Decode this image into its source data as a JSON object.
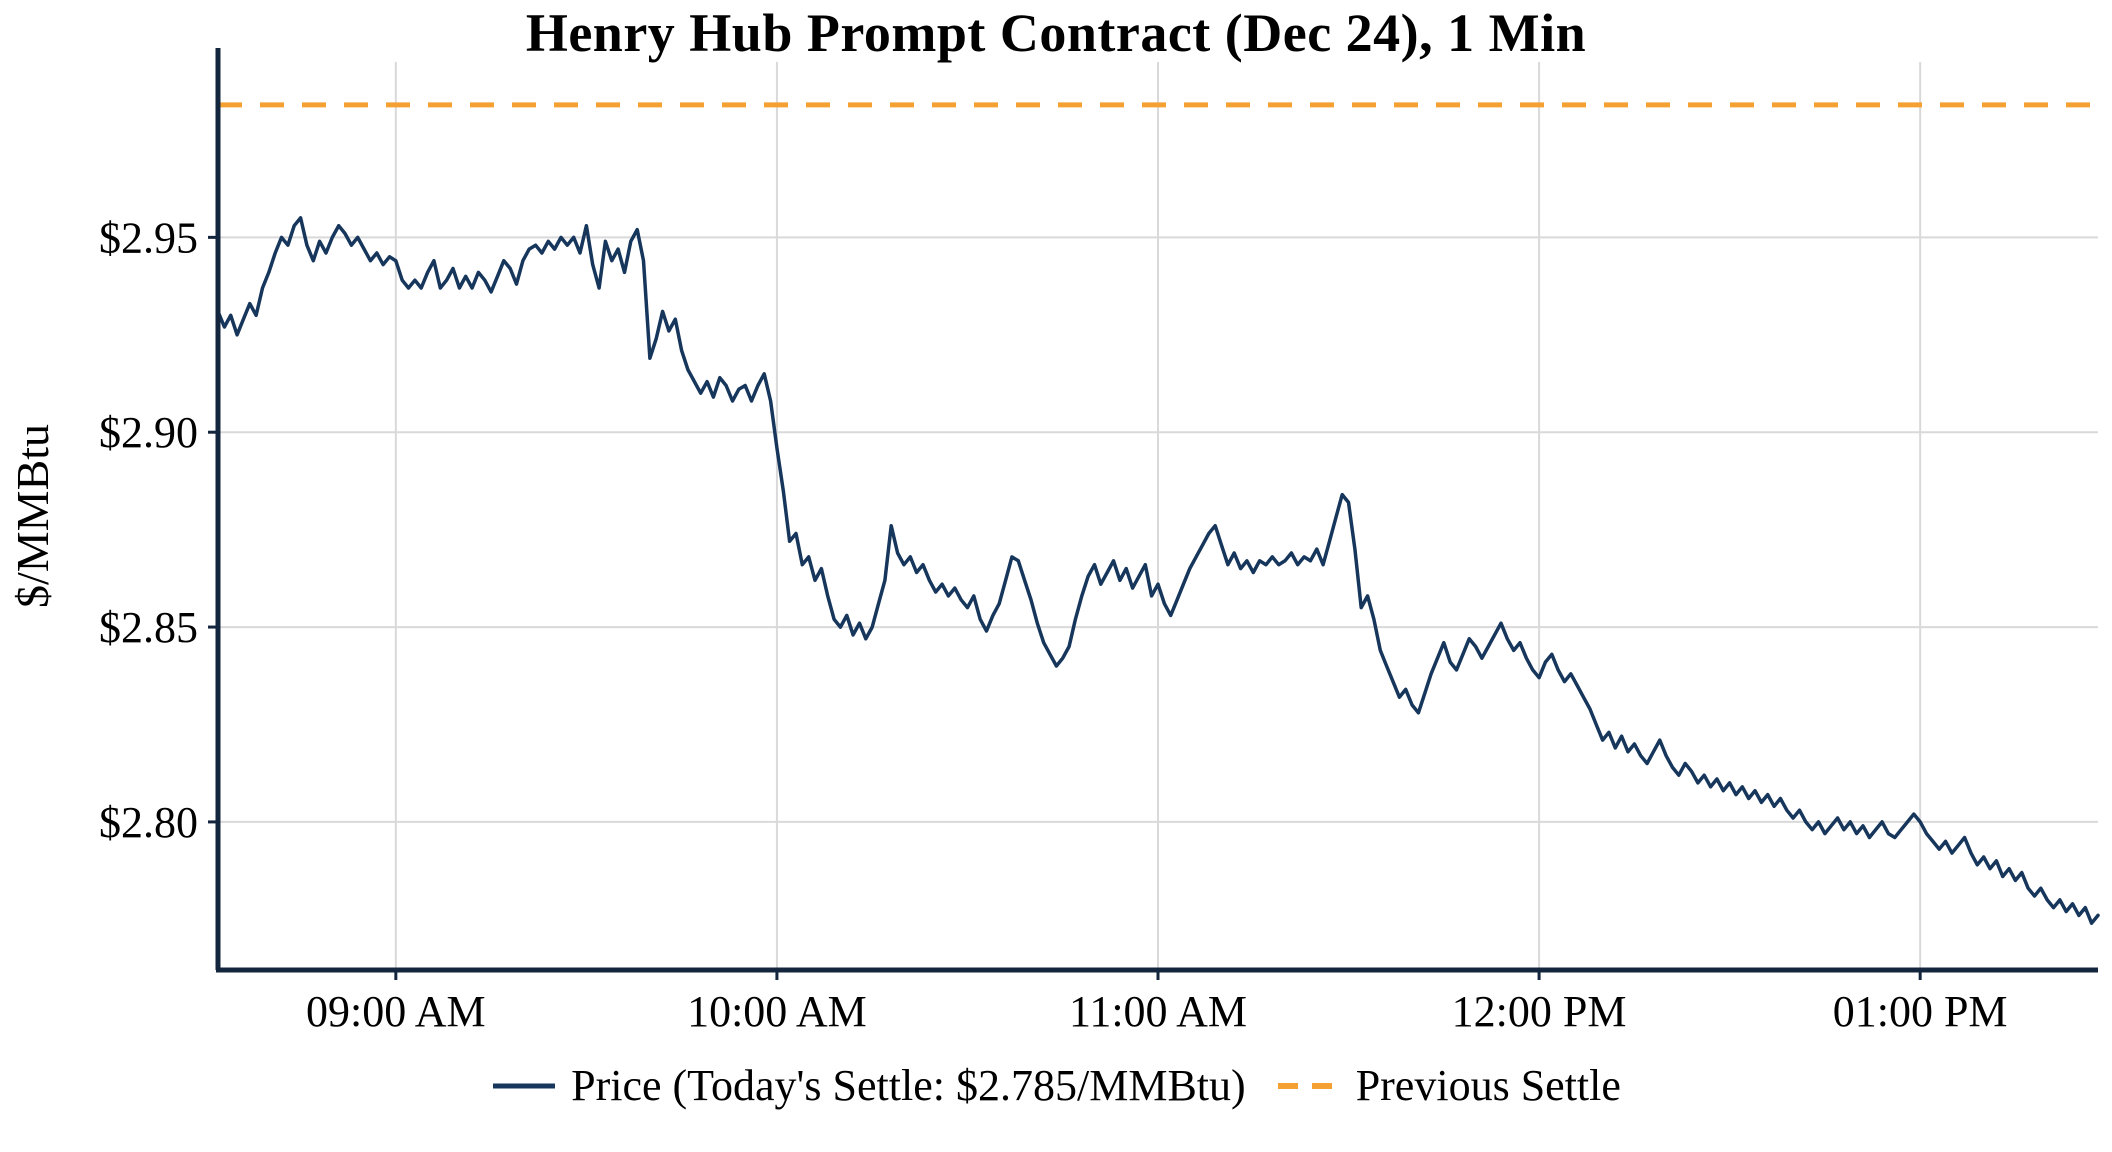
{
  "page": {
    "background": "#FFFFFF"
  },
  "colors": {
    "price_line": "#17365C",
    "previous_settle": "#F5A033",
    "grid": "#D9D9D9",
    "axis": "#14253E",
    "text": "#000000"
  },
  "chart_data": {
    "type": "line",
    "title": "Henry Hub Prompt Contract (Dec 24), 1 Min",
    "xlabel": "",
    "ylabel": "$/MMBtu",
    "x_description": "minutes since 08:32 AM",
    "xlim": [
      0,
      296
    ],
    "ylim": [
      2.762,
      2.995
    ],
    "grid": true,
    "legend_position": "bottom",
    "todays_settle": 2.785,
    "previous_settle": 2.984,
    "x_ticks": [
      {
        "t": 28,
        "label": "09:00 AM"
      },
      {
        "t": 88,
        "label": "10:00 AM"
      },
      {
        "t": 148,
        "label": "11:00 AM"
      },
      {
        "t": 208,
        "label": "12:00 PM"
      },
      {
        "t": 268,
        "label": "01:00 PM"
      }
    ],
    "y_ticks": [
      {
        "v": 2.8,
        "label": "$2.80"
      },
      {
        "v": 2.85,
        "label": "$2.85"
      },
      {
        "v": 2.9,
        "label": "$2.90"
      },
      {
        "v": 2.95,
        "label": "$2.95"
      }
    ],
    "series": [
      {
        "name": "Price (Today's Settle: $2.785/MMBtu)",
        "type": "line",
        "color": "#17365C",
        "points": [
          [
            0,
            2.931
          ],
          [
            1,
            2.927
          ],
          [
            2,
            2.93
          ],
          [
            3,
            2.925
          ],
          [
            4,
            2.929
          ],
          [
            5,
            2.933
          ],
          [
            6,
            2.93
          ],
          [
            7,
            2.937
          ],
          [
            8,
            2.941
          ],
          [
            9,
            2.946
          ],
          [
            10,
            2.95
          ],
          [
            11,
            2.948
          ],
          [
            12,
            2.953
          ],
          [
            13,
            2.955
          ],
          [
            14,
            2.948
          ],
          [
            15,
            2.944
          ],
          [
            16,
            2.949
          ],
          [
            17,
            2.946
          ],
          [
            18,
            2.95
          ],
          [
            19,
            2.953
          ],
          [
            20,
            2.951
          ],
          [
            21,
            2.948
          ],
          [
            22,
            2.95
          ],
          [
            23,
            2.947
          ],
          [
            24,
            2.944
          ],
          [
            25,
            2.946
          ],
          [
            26,
            2.943
          ],
          [
            27,
            2.945
          ],
          [
            28,
            2.944
          ],
          [
            29,
            2.939
          ],
          [
            30,
            2.937
          ],
          [
            31,
            2.939
          ],
          [
            32,
            2.937
          ],
          [
            33,
            2.941
          ],
          [
            34,
            2.944
          ],
          [
            35,
            2.937
          ],
          [
            36,
            2.939
          ],
          [
            37,
            2.942
          ],
          [
            38,
            2.937
          ],
          [
            39,
            2.94
          ],
          [
            40,
            2.937
          ],
          [
            41,
            2.941
          ],
          [
            42,
            2.939
          ],
          [
            43,
            2.936
          ],
          [
            44,
            2.94
          ],
          [
            45,
            2.944
          ],
          [
            46,
            2.942
          ],
          [
            47,
            2.938
          ],
          [
            48,
            2.944
          ],
          [
            49,
            2.947
          ],
          [
            50,
            2.948
          ],
          [
            51,
            2.946
          ],
          [
            52,
            2.949
          ],
          [
            53,
            2.947
          ],
          [
            54,
            2.95
          ],
          [
            55,
            2.948
          ],
          [
            56,
            2.95
          ],
          [
            57,
            2.946
          ],
          [
            58,
            2.953
          ],
          [
            59,
            2.943
          ],
          [
            60,
            2.937
          ],
          [
            61,
            2.949
          ],
          [
            62,
            2.944
          ],
          [
            63,
            2.947
          ],
          [
            64,
            2.941
          ],
          [
            65,
            2.949
          ],
          [
            66,
            2.952
          ],
          [
            67,
            2.944
          ],
          [
            68,
            2.919
          ],
          [
            69,
            2.924
          ],
          [
            70,
            2.931
          ],
          [
            71,
            2.926
          ],
          [
            72,
            2.929
          ],
          [
            73,
            2.921
          ],
          [
            74,
            2.916
          ],
          [
            75,
            2.913
          ],
          [
            76,
            2.91
          ],
          [
            77,
            2.913
          ],
          [
            78,
            2.909
          ],
          [
            79,
            2.914
          ],
          [
            80,
            2.912
          ],
          [
            81,
            2.908
          ],
          [
            82,
            2.911
          ],
          [
            83,
            2.912
          ],
          [
            84,
            2.908
          ],
          [
            85,
            2.912
          ],
          [
            86,
            2.915
          ],
          [
            87,
            2.908
          ],
          [
            88,
            2.896
          ],
          [
            89,
            2.885
          ],
          [
            90,
            2.872
          ],
          [
            91,
            2.874
          ],
          [
            92,
            2.866
          ],
          [
            93,
            2.868
          ],
          [
            94,
            2.862
          ],
          [
            95,
            2.865
          ],
          [
            96,
            2.858
          ],
          [
            97,
            2.852
          ],
          [
            98,
            2.85
          ],
          [
            99,
            2.853
          ],
          [
            100,
            2.848
          ],
          [
            101,
            2.851
          ],
          [
            102,
            2.847
          ],
          [
            103,
            2.85
          ],
          [
            104,
            2.856
          ],
          [
            105,
            2.862
          ],
          [
            106,
            2.876
          ],
          [
            107,
            2.869
          ],
          [
            108,
            2.866
          ],
          [
            109,
            2.868
          ],
          [
            110,
            2.864
          ],
          [
            111,
            2.866
          ],
          [
            112,
            2.862
          ],
          [
            113,
            2.859
          ],
          [
            114,
            2.861
          ],
          [
            115,
            2.858
          ],
          [
            116,
            2.86
          ],
          [
            117,
            2.857
          ],
          [
            118,
            2.855
          ],
          [
            119,
            2.858
          ],
          [
            120,
            2.852
          ],
          [
            121,
            2.849
          ],
          [
            122,
            2.853
          ],
          [
            123,
            2.856
          ],
          [
            124,
            2.862
          ],
          [
            125,
            2.868
          ],
          [
            126,
            2.867
          ],
          [
            127,
            2.862
          ],
          [
            128,
            2.857
          ],
          [
            129,
            2.851
          ],
          [
            130,
            2.846
          ],
          [
            131,
            2.843
          ],
          [
            132,
            2.84
          ],
          [
            133,
            2.842
          ],
          [
            134,
            2.845
          ],
          [
            135,
            2.852
          ],
          [
            136,
            2.858
          ],
          [
            137,
            2.863
          ],
          [
            138,
            2.866
          ],
          [
            139,
            2.861
          ],
          [
            140,
            2.864
          ],
          [
            141,
            2.867
          ],
          [
            142,
            2.862
          ],
          [
            143,
            2.865
          ],
          [
            144,
            2.86
          ],
          [
            145,
            2.863
          ],
          [
            146,
            2.866
          ],
          [
            147,
            2.858
          ],
          [
            148,
            2.861
          ],
          [
            149,
            2.856
          ],
          [
            150,
            2.853
          ],
          [
            151,
            2.857
          ],
          [
            152,
            2.861
          ],
          [
            153,
            2.865
          ],
          [
            154,
            2.868
          ],
          [
            155,
            2.871
          ],
          [
            156,
            2.874
          ],
          [
            157,
            2.876
          ],
          [
            158,
            2.871
          ],
          [
            159,
            2.866
          ],
          [
            160,
            2.869
          ],
          [
            161,
            2.865
          ],
          [
            162,
            2.867
          ],
          [
            163,
            2.864
          ],
          [
            164,
            2.867
          ],
          [
            165,
            2.866
          ],
          [
            166,
            2.868
          ],
          [
            167,
            2.866
          ],
          [
            168,
            2.867
          ],
          [
            169,
            2.869
          ],
          [
            170,
            2.866
          ],
          [
            171,
            2.868
          ],
          [
            172,
            2.867
          ],
          [
            173,
            2.87
          ],
          [
            174,
            2.866
          ],
          [
            175,
            2.872
          ],
          [
            176,
            2.878
          ],
          [
            177,
            2.884
          ],
          [
            178,
            2.882
          ],
          [
            179,
            2.87
          ],
          [
            180,
            2.855
          ],
          [
            181,
            2.858
          ],
          [
            182,
            2.852
          ],
          [
            183,
            2.844
          ],
          [
            184,
            2.84
          ],
          [
            185,
            2.836
          ],
          [
            186,
            2.832
          ],
          [
            187,
            2.834
          ],
          [
            188,
            2.83
          ],
          [
            189,
            2.828
          ],
          [
            190,
            2.833
          ],
          [
            191,
            2.838
          ],
          [
            192,
            2.842
          ],
          [
            193,
            2.846
          ],
          [
            194,
            2.841
          ],
          [
            195,
            2.839
          ],
          [
            196,
            2.843
          ],
          [
            197,
            2.847
          ],
          [
            198,
            2.845
          ],
          [
            199,
            2.842
          ],
          [
            200,
            2.845
          ],
          [
            201,
            2.848
          ],
          [
            202,
            2.851
          ],
          [
            203,
            2.847
          ],
          [
            204,
            2.844
          ],
          [
            205,
            2.846
          ],
          [
            206,
            2.842
          ],
          [
            207,
            2.839
          ],
          [
            208,
            2.837
          ],
          [
            209,
            2.841
          ],
          [
            210,
            2.843
          ],
          [
            211,
            2.839
          ],
          [
            212,
            2.836
          ],
          [
            213,
            2.838
          ],
          [
            214,
            2.835
          ],
          [
            215,
            2.832
          ],
          [
            216,
            2.829
          ],
          [
            217,
            2.825
          ],
          [
            218,
            2.821
          ],
          [
            219,
            2.823
          ],
          [
            220,
            2.819
          ],
          [
            221,
            2.822
          ],
          [
            222,
            2.818
          ],
          [
            223,
            2.82
          ],
          [
            224,
            2.817
          ],
          [
            225,
            2.815
          ],
          [
            226,
            2.818
          ],
          [
            227,
            2.821
          ],
          [
            228,
            2.817
          ],
          [
            229,
            2.814
          ],
          [
            230,
            2.812
          ],
          [
            231,
            2.815
          ],
          [
            232,
            2.813
          ],
          [
            233,
            2.81
          ],
          [
            234,
            2.812
          ],
          [
            235,
            2.809
          ],
          [
            236,
            2.811
          ],
          [
            237,
            2.808
          ],
          [
            238,
            2.81
          ],
          [
            239,
            2.807
          ],
          [
            240,
            2.809
          ],
          [
            241,
            2.806
          ],
          [
            242,
            2.808
          ],
          [
            243,
            2.805
          ],
          [
            244,
            2.807
          ],
          [
            245,
            2.804
          ],
          [
            246,
            2.806
          ],
          [
            247,
            2.803
          ],
          [
            248,
            2.801
          ],
          [
            249,
            2.803
          ],
          [
            250,
            2.8
          ],
          [
            251,
            2.798
          ],
          [
            252,
            2.8
          ],
          [
            253,
            2.797
          ],
          [
            254,
            2.799
          ],
          [
            255,
            2.801
          ],
          [
            256,
            2.798
          ],
          [
            257,
            2.8
          ],
          [
            258,
            2.797
          ],
          [
            259,
            2.799
          ],
          [
            260,
            2.796
          ],
          [
            261,
            2.798
          ],
          [
            262,
            2.8
          ],
          [
            263,
            2.797
          ],
          [
            264,
            2.796
          ],
          [
            265,
            2.798
          ],
          [
            266,
            2.8
          ],
          [
            267,
            2.802
          ],
          [
            268,
            2.8
          ],
          [
            269,
            2.797
          ],
          [
            270,
            2.795
          ],
          [
            271,
            2.793
          ],
          [
            272,
            2.795
          ],
          [
            273,
            2.792
          ],
          [
            274,
            2.794
          ],
          [
            275,
            2.796
          ],
          [
            276,
            2.792
          ],
          [
            277,
            2.789
          ],
          [
            278,
            2.791
          ],
          [
            279,
            2.788
          ],
          [
            280,
            2.79
          ],
          [
            281,
            2.786
          ],
          [
            282,
            2.788
          ],
          [
            283,
            2.785
          ],
          [
            284,
            2.787
          ],
          [
            285,
            2.783
          ],
          [
            286,
            2.781
          ],
          [
            287,
            2.783
          ],
          [
            288,
            2.78
          ],
          [
            289,
            2.778
          ],
          [
            290,
            2.78
          ],
          [
            291,
            2.777
          ],
          [
            292,
            2.779
          ],
          [
            293,
            2.776
          ],
          [
            294,
            2.778
          ],
          [
            295,
            2.774
          ],
          [
            296,
            2.776
          ]
        ]
      },
      {
        "name": "Previous Settle",
        "type": "hline",
        "style": "dashed",
        "color": "#F5A033",
        "value": 2.984
      }
    ]
  }
}
